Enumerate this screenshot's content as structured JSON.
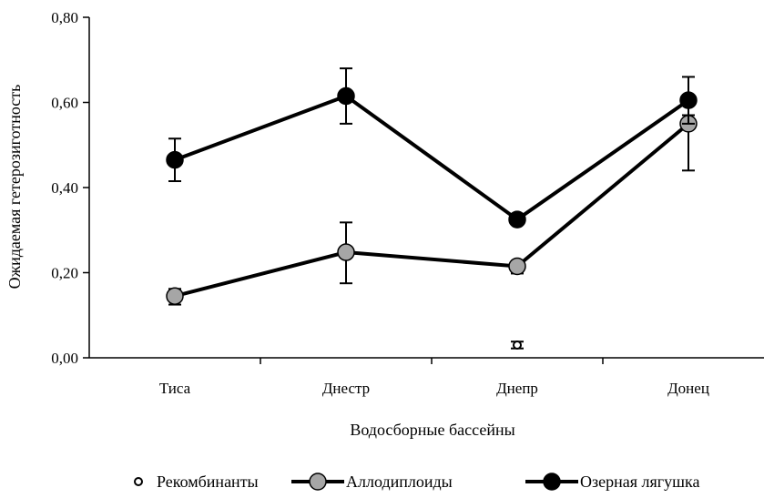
{
  "chart_data": {
    "type": "line",
    "title": "",
    "xlabel": "Водосборные бассейны",
    "ylabel": "Ожидаемая гетерозиготность",
    "categories": [
      "Тиса",
      "Днестр",
      "Днепр",
      "Донец"
    ],
    "ylim": [
      0,
      0.8
    ],
    "y_ticks": [
      "0,00",
      "0,20",
      "0,40",
      "0,60",
      "0,80"
    ],
    "grid": false,
    "legend_position": "bottom",
    "series": [
      {
        "name": "Рекомбинанты",
        "marker": "open-circle",
        "line": false,
        "color": "#000000",
        "fill": "#ffffff",
        "values": [
          null,
          null,
          0.03,
          null
        ],
        "err_low": [
          null,
          null,
          0.022,
          null
        ],
        "err_high": [
          null,
          null,
          0.038,
          null
        ]
      },
      {
        "name": "Аллодиплоиды",
        "marker": "filled-circle",
        "line": true,
        "color": "#000000",
        "fill": "#a6a6a6",
        "values": [
          0.145,
          0.248,
          0.215,
          0.55
        ],
        "err_low": [
          0.125,
          0.175,
          0.198,
          0.44
        ],
        "err_high": [
          0.162,
          0.318,
          0.228,
          0.57
        ]
      },
      {
        "name": "Озерная лягушка",
        "marker": "filled-circle",
        "line": true,
        "color": "#000000",
        "fill": "#000000",
        "values": [
          0.465,
          0.615,
          0.325,
          0.605
        ],
        "err_low": [
          0.415,
          0.55,
          null,
          0.55
        ],
        "err_high": [
          0.515,
          0.68,
          null,
          0.66
        ]
      }
    ]
  }
}
